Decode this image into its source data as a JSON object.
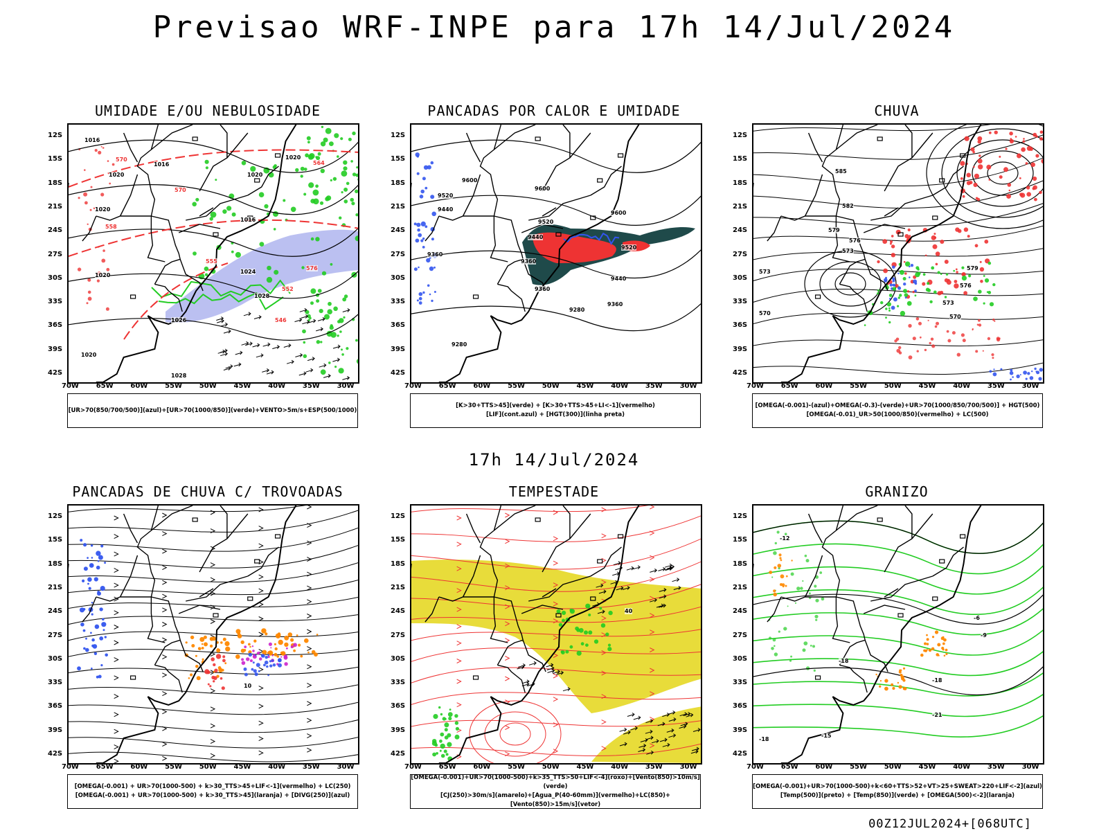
{
  "header": {
    "title": "Previsao WRF-INPE  para 17h 14/Jul/2024",
    "mid_title": "17h 14/Jul/2024"
  },
  "footer": "00Z12JUL2024+[068UTC]",
  "lat_labels": [
    "12S",
    "15S",
    "18S",
    "21S",
    "24S",
    "27S",
    "30S",
    "33S",
    "36S",
    "39S",
    "42S"
  ],
  "lon_labels": [
    "70W",
    "65W",
    "60W",
    "55W",
    "50W",
    "45W",
    "40W",
    "35W",
    "30W"
  ],
  "panels": [
    {
      "title": "UMIDADE E/OU NEBULOSIDADE",
      "legend": [
        "[UR>70(850/700/500)](azul)+[UR>70(1000/850)](verde)+VENTO>5m/s+ESP(500/1000)"
      ],
      "contour_labels": [
        "1016",
        "1020",
        "1020",
        "1016",
        "1020",
        "1020",
        "1016",
        "1024",
        "1028",
        "1026",
        "1020",
        "1020",
        "1028",
        "570",
        "570",
        "555",
        "552",
        "546",
        "558",
        "564",
        "576"
      ]
    },
    {
      "title": "PANCADAS POR CALOR E UMIDADE",
      "legend": [
        "[K>30+TTS>45](verde) + [K>30+TTS>45+LI<-1](vermelho)",
        "[LIF](cont.azul) + [HGT(300)](linha preta)"
      ],
      "contour_labels": [
        "9600",
        "9520",
        "9440",
        "9360",
        "9600",
        "9520",
        "9600",
        "9440",
        "9360",
        "9520",
        "9440",
        "9360",
        "9280",
        "9280",
        "9360"
      ]
    },
    {
      "title": "CHUVA",
      "legend": [
        "[OMEGA(-0.001)-(azul)+OMEGA(-0.3)-(verde)+UR>70(1000/850/700/500)] + HGT(500)",
        "[OMEGA(-0.01)_UR>50(1000/850)(vermelho) + LC(500)"
      ],
      "contour_labels": [
        "585",
        "582",
        "579",
        "576",
        "573",
        "573",
        "570",
        "579",
        "576",
        "573",
        "570"
      ]
    },
    {
      "title": "PANCADAS DE CHUVA C/ TROVOADAS",
      "legend": [
        "[OMEGA(-0.001) + UR>70(1000-500) + k>30_TTS>45+LIF<-1](vermelho) + LC(250)",
        "[OMEGA(-0.001) + UR>70(1000-500) + k>30_TTS>45](laranja) + [DIVG(250)](azul)"
      ],
      "contour_labels": [
        "10"
      ]
    },
    {
      "title": "TEMPESTADE",
      "legend": [
        "[OMEGA(-0.001)+UR>70(1000-500)+k>35_TTS>50+LIF<-4](roxo)+[Vento(850)>10m/s](verde)",
        "[CJ(250)>30m/s](amarelo)+[Agua_P(40-60mm)](vermelho)+LC(850)+[Vento(850)>15m/s](vetor)"
      ],
      "contour_labels": [
        "40"
      ]
    },
    {
      "title": "GRANIZO",
      "legend": [
        "[OMEGA(-0.001)+UR>70(1000-500)+k<60+TTS>52+VT>25+SWEAT>220+LIF<-2](azul)",
        "[Temp(500)](preto) + [Temp(850)](verde) + [OMEGA(500)<-2](laranja)"
      ],
      "contour_labels": [
        "-12",
        "-15",
        "-18",
        "-18",
        "-21",
        "-18",
        "-6",
        "-9"
      ]
    }
  ],
  "colors": {
    "green": "#22cc22",
    "blue": "#3355ee",
    "red": "#ee3333",
    "orange": "#ff8800",
    "yellow": "#e8dc3a",
    "darkteal": "#1f4a4a",
    "lavender": "#aab0ee",
    "magenta": "#cc22cc"
  },
  "icons": [
    "wind-vector-arrow-icon",
    "streamline-arrow-icon"
  ]
}
